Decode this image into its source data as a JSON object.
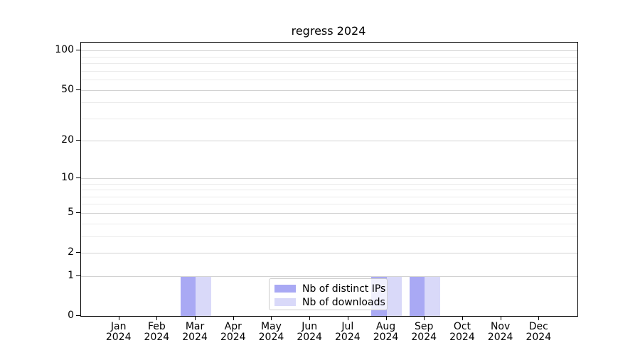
{
  "chart_data": {
    "type": "bar",
    "title": "regress 2024",
    "categories": [
      "Jan 2024",
      "Feb 2024",
      "Mar 2024",
      "Apr 2024",
      "May 2024",
      "Jun 2024",
      "Jul 2024",
      "Aug 2024",
      "Sep 2024",
      "Oct 2024",
      "Nov 2024",
      "Dec 2024"
    ],
    "series": [
      {
        "name": "Nb of distinct IPs",
        "color": "#a9a9f4",
        "values": [
          0,
          0,
          1,
          0,
          0,
          0,
          0,
          1,
          1,
          0,
          0,
          0
        ]
      },
      {
        "name": "Nb of downloads",
        "color": "#d9d9f9",
        "values": [
          0,
          0,
          1,
          0,
          0,
          0,
          0,
          1,
          1,
          0,
          0,
          0
        ]
      }
    ],
    "xlabel": "",
    "ylabel": "",
    "yscale": "log1p",
    "ylim": [
      0,
      115
    ],
    "xlim": [
      -1,
      12
    ],
    "yticks": [
      0,
      1,
      2,
      5,
      10,
      20,
      50,
      100
    ],
    "yticks_minor": [
      3,
      4,
      6,
      7,
      8,
      9,
      30,
      40,
      60,
      70,
      80,
      90
    ],
    "grid": true,
    "legend_position": "lower center"
  },
  "colors": {
    "grid_major": "#d2d2d2",
    "grid_minor": "#ebebeb",
    "spine": "#000000",
    "background": "#ffffff",
    "legend_border": "#cccccc"
  }
}
